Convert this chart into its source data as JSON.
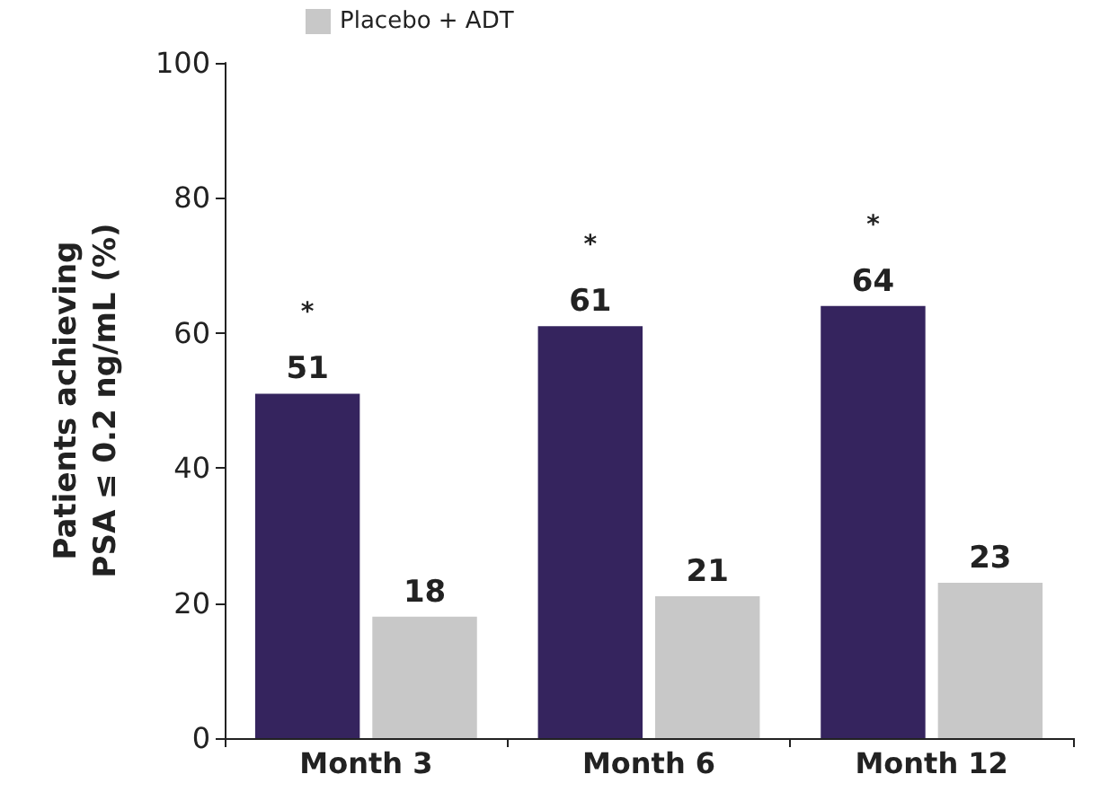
{
  "chart_data": {
    "type": "bar",
    "ylabel": "Patients achieving\nPSA ≤ 0.2 ng/mL (%)",
    "categories": [
      "Month 3",
      "Month 6",
      "Month 12"
    ],
    "series": [
      {
        "color": "#35245e",
        "values": [
          51,
          61,
          64
        ]
      },
      {
        "name": "Placebo + ADT",
        "color": "#c8c8c8",
        "values": [
          18,
          21,
          23
        ]
      }
    ],
    "ylim": [
      0,
      100
    ],
    "yticks": [
      0,
      20,
      40,
      60,
      80,
      100
    ],
    "grid": false,
    "legend": "top left",
    "data_labels": true,
    "annotations": [
      "*",
      "*",
      "*"
    ]
  }
}
